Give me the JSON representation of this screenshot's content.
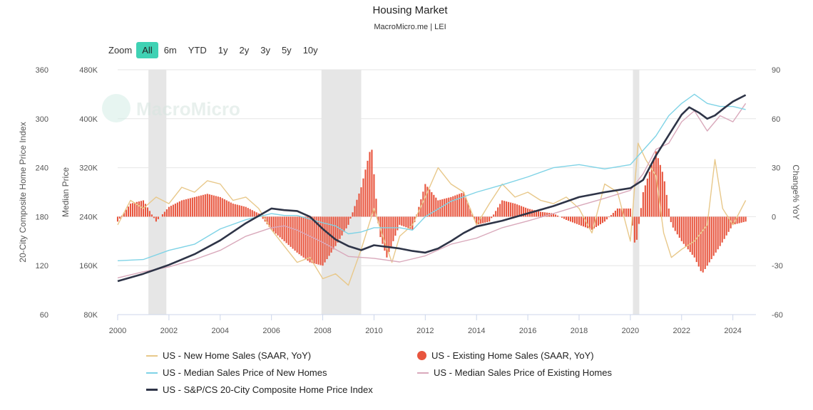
{
  "title": "Housing Market",
  "subtitle": "MacroMicro.me | LEI",
  "watermark": "MacroMicro",
  "zoom": {
    "label": "Zoom",
    "options": [
      "All",
      "6m",
      "YTD",
      "1y",
      "2y",
      "3y",
      "5y",
      "10y"
    ],
    "active": "All"
  },
  "colors": {
    "new_home_sales": "#e8c88a",
    "existing_home_sales": "#e8553e",
    "median_new": "#7fd3e6",
    "median_existing": "#d9a9bb",
    "cs20": "#2e3447",
    "recession": "#e6e6e6",
    "zoom_active": "#3fd2b4"
  },
  "legend": [
    {
      "key": "new_home_sales",
      "label": "US - New Home Sales (SAAR, YoY)",
      "symbol": "line"
    },
    {
      "key": "existing_home_sales",
      "label": "US - Existing Home Sales (SAAR, YoY)",
      "symbol": "dot"
    },
    {
      "key": "median_new",
      "label": "US - Median Sales Price of New Homes",
      "symbol": "line"
    },
    {
      "key": "median_existing",
      "label": "US - Median Sales Price of Existing Homes",
      "symbol": "line"
    },
    {
      "key": "cs20",
      "label": "US - S&P/CS 20-City Composite Home Price Index",
      "symbol": "line"
    }
  ],
  "chart_data": {
    "type": "line",
    "xlim": [
      2000,
      2024.9
    ],
    "x_ticks": [
      "2000",
      "2002",
      "2004",
      "2006",
      "2008",
      "2010",
      "2012",
      "2014",
      "2016",
      "2018",
      "2020",
      "2022",
      "2024"
    ],
    "axes": {
      "left_outer": {
        "label": "20-City Composite Home Price Index",
        "ylim": [
          60,
          360
        ],
        "ticks": [
          "60",
          "120",
          "180",
          "240",
          "300",
          "360"
        ]
      },
      "left_inner": {
        "label": "Median Price",
        "ylim": [
          80000,
          480000
        ],
        "ticks": [
          "80K",
          "160K",
          "240K",
          "320K",
          "400K",
          "480K"
        ]
      },
      "right": {
        "label": "Change% YoY",
        "ylim": [
          -60,
          90
        ],
        "ticks": [
          "-60",
          "-30",
          "0",
          "30",
          "60",
          "90"
        ]
      }
    },
    "recessions": [
      [
        2001.2,
        2001.9
      ],
      [
        2007.95,
        2009.5
      ],
      [
        2020.1,
        2020.35
      ]
    ],
    "series": [
      {
        "key": "cs20",
        "name": "US - S&P/CS 20-City Composite Home Price Index",
        "axis": "left_outer",
        "points": [
          [
            2000,
            101
          ],
          [
            2001,
            110
          ],
          [
            2002,
            121
          ],
          [
            2003,
            134
          ],
          [
            2004,
            151
          ],
          [
            2005,
            172
          ],
          [
            2006,
            190
          ],
          [
            2006.5,
            188
          ],
          [
            2007,
            187
          ],
          [
            2007.5,
            180
          ],
          [
            2008,
            165
          ],
          [
            2008.5,
            152
          ],
          [
            2009,
            144
          ],
          [
            2009.5,
            139
          ],
          [
            2010,
            145
          ],
          [
            2011,
            141
          ],
          [
            2011.5,
            138
          ],
          [
            2012,
            136
          ],
          [
            2012.5,
            141
          ],
          [
            2013,
            150
          ],
          [
            2013.5,
            160
          ],
          [
            2014,
            168
          ],
          [
            2015,
            175
          ],
          [
            2016,
            184
          ],
          [
            2017,
            193
          ],
          [
            2018,
            204
          ],
          [
            2019,
            210
          ],
          [
            2020,
            215
          ],
          [
            2020.5,
            225
          ],
          [
            2021,
            255
          ],
          [
            2021.5,
            280
          ],
          [
            2022,
            305
          ],
          [
            2022.3,
            314
          ],
          [
            2022.7,
            307
          ],
          [
            2023,
            300
          ],
          [
            2023.3,
            304
          ],
          [
            2023.7,
            314
          ],
          [
            2024,
            321
          ],
          [
            2024.5,
            329
          ]
        ]
      },
      {
        "key": "median_new",
        "name": "US - Median Sales Price of New Homes",
        "axis": "left_inner",
        "points": [
          [
            2000,
            168000
          ],
          [
            2001,
            170000
          ],
          [
            2002,
            185000
          ],
          [
            2003,
            195000
          ],
          [
            2004,
            220000
          ],
          [
            2005,
            235000
          ],
          [
            2006,
            245000
          ],
          [
            2006.5,
            242000
          ],
          [
            2007,
            242000
          ],
          [
            2008,
            230000
          ],
          [
            2008.5,
            225000
          ],
          [
            2009,
            212000
          ],
          [
            2009.5,
            215000
          ],
          [
            2010,
            222000
          ],
          [
            2011,
            222000
          ],
          [
            2011.5,
            218000
          ],
          [
            2012,
            240000
          ],
          [
            2013,
            265000
          ],
          [
            2014,
            280000
          ],
          [
            2015,
            292000
          ],
          [
            2016,
            305000
          ],
          [
            2017,
            320000
          ],
          [
            2018,
            325000
          ],
          [
            2019,
            318000
          ],
          [
            2020,
            325000
          ],
          [
            2021,
            372000
          ],
          [
            2021.5,
            405000
          ],
          [
            2022,
            425000
          ],
          [
            2022.5,
            440000
          ],
          [
            2023,
            425000
          ],
          [
            2023.5,
            420000
          ],
          [
            2024,
            420000
          ],
          [
            2024.5,
            415000
          ]
        ]
      },
      {
        "key": "median_existing",
        "name": "US - Median Sales Price of Existing Homes",
        "axis": "left_inner",
        "points": [
          [
            2000,
            140000
          ],
          [
            2001,
            150000
          ],
          [
            2002,
            158000
          ],
          [
            2003,
            170000
          ],
          [
            2004,
            185000
          ],
          [
            2005,
            208000
          ],
          [
            2006,
            222000
          ],
          [
            2006.5,
            225000
          ],
          [
            2007,
            218000
          ],
          [
            2008,
            198000
          ],
          [
            2009,
            175000
          ],
          [
            2010,
            172000
          ],
          [
            2011,
            166000
          ],
          [
            2012,
            176000
          ],
          [
            2013,
            195000
          ],
          [
            2014,
            205000
          ],
          [
            2015,
            222000
          ],
          [
            2016,
            233000
          ],
          [
            2017,
            245000
          ],
          [
            2018,
            258000
          ],
          [
            2019,
            270000
          ],
          [
            2020,
            283000
          ],
          [
            2020.5,
            310000
          ],
          [
            2021,
            350000
          ],
          [
            2021.5,
            360000
          ],
          [
            2022,
            395000
          ],
          [
            2022.5,
            413000
          ],
          [
            2023,
            380000
          ],
          [
            2023.5,
            405000
          ],
          [
            2024,
            395000
          ],
          [
            2024.5,
            425000
          ]
        ]
      },
      {
        "key": "new_home_sales",
        "name": "US - New Home Sales (SAAR, YoY)",
        "axis": "right",
        "points": [
          [
            2000,
            -5
          ],
          [
            2000.5,
            10
          ],
          [
            2001,
            5
          ],
          [
            2001.5,
            12
          ],
          [
            2002,
            8
          ],
          [
            2002.5,
            18
          ],
          [
            2003,
            15
          ],
          [
            2003.5,
            22
          ],
          [
            2004,
            20
          ],
          [
            2004.5,
            10
          ],
          [
            2005,
            12
          ],
          [
            2005.5,
            5
          ],
          [
            2006,
            -8
          ],
          [
            2006.5,
            -18
          ],
          [
            2007,
            -28
          ],
          [
            2007.5,
            -25
          ],
          [
            2008,
            -38
          ],
          [
            2008.5,
            -35
          ],
          [
            2009,
            -42
          ],
          [
            2009.5,
            -20
          ],
          [
            2010,
            5
          ],
          [
            2010.3,
            -10
          ],
          [
            2010.7,
            -28
          ],
          [
            2011,
            -12
          ],
          [
            2011.5,
            -5
          ],
          [
            2012,
            12
          ],
          [
            2012.5,
            30
          ],
          [
            2013,
            20
          ],
          [
            2013.5,
            15
          ],
          [
            2014,
            -5
          ],
          [
            2014.5,
            8
          ],
          [
            2015,
            20
          ],
          [
            2015.5,
            12
          ],
          [
            2016,
            15
          ],
          [
            2016.5,
            10
          ],
          [
            2017,
            8
          ],
          [
            2017.5,
            12
          ],
          [
            2018,
            5
          ],
          [
            2018.5,
            -10
          ],
          [
            2019,
            20
          ],
          [
            2019.5,
            15
          ],
          [
            2020,
            -15
          ],
          [
            2020.3,
            45
          ],
          [
            2020.6,
            35
          ],
          [
            2021,
            25
          ],
          [
            2021.3,
            -10
          ],
          [
            2021.6,
            -25
          ],
          [
            2022,
            -20
          ],
          [
            2022.5,
            -15
          ],
          [
            2023,
            -5
          ],
          [
            2023.3,
            35
          ],
          [
            2023.6,
            5
          ],
          [
            2024,
            -5
          ],
          [
            2024.5,
            10
          ]
        ]
      }
    ],
    "bars": {
      "key": "existing_home_sales",
      "name": "US - Existing Home Sales (SAAR, YoY)",
      "axis": "right",
      "points": [
        [
          2000,
          -3
        ],
        [
          2000.5,
          8
        ],
        [
          2001,
          10
        ],
        [
          2001.5,
          -3
        ],
        [
          2002,
          6
        ],
        [
          2002.5,
          10
        ],
        [
          2003,
          12
        ],
        [
          2003.5,
          14
        ],
        [
          2004,
          12
        ],
        [
          2004.5,
          8
        ],
        [
          2005,
          6
        ],
        [
          2005.5,
          2
        ],
        [
          2006,
          -8
        ],
        [
          2006.5,
          -15
        ],
        [
          2007,
          -22
        ],
        [
          2007.5,
          -28
        ],
        [
          2008,
          -30
        ],
        [
          2008.5,
          -18
        ],
        [
          2009,
          -5
        ],
        [
          2009.5,
          18
        ],
        [
          2009.9,
          44
        ],
        [
          2010.2,
          -10
        ],
        [
          2010.5,
          -25
        ],
        [
          2011,
          -5
        ],
        [
          2011.5,
          -8
        ],
        [
          2012,
          20
        ],
        [
          2012.5,
          10
        ],
        [
          2013,
          12
        ],
        [
          2013.5,
          15
        ],
        [
          2014,
          -5
        ],
        [
          2014.5,
          -3
        ],
        [
          2015,
          10
        ],
        [
          2015.5,
          8
        ],
        [
          2016,
          5
        ],
        [
          2016.5,
          3
        ],
        [
          2017,
          2
        ],
        [
          2017.5,
          -2
        ],
        [
          2018,
          -5
        ],
        [
          2018.5,
          -8
        ],
        [
          2019,
          -3
        ],
        [
          2019.5,
          5
        ],
        [
          2020,
          5
        ],
        [
          2020.2,
          -20
        ],
        [
          2020.5,
          15
        ],
        [
          2021,
          40
        ],
        [
          2021.3,
          25
        ],
        [
          2021.6,
          -5
        ],
        [
          2022,
          -15
        ],
        [
          2022.5,
          -25
        ],
        [
          2022.8,
          -35
        ],
        [
          2023,
          -30
        ],
        [
          2023.5,
          -18
        ],
        [
          2024,
          -5
        ],
        [
          2024.5,
          -3
        ]
      ]
    }
  }
}
